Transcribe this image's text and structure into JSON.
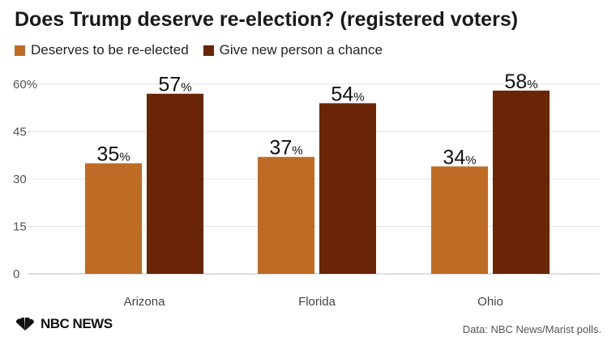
{
  "title": "Does Trump deserve re-election? (registered voters)",
  "legend": [
    {
      "label": "Deserves to be re-elected",
      "color": "#be6b25"
    },
    {
      "label": "Give new person a chance",
      "color": "#6a2507"
    }
  ],
  "footer": {
    "logo_text": "NBC NEWS",
    "source": "Data: NBC News/Marist polls."
  },
  "chart_data": {
    "type": "bar",
    "categories": [
      "Arizona",
      "Florida",
      "Ohio"
    ],
    "series": [
      {
        "name": "Deserves to be re-elected",
        "values": [
          35,
          37,
          34
        ],
        "color": "#be6b25"
      },
      {
        "name": "Give new person a chance",
        "values": [
          57,
          54,
          58
        ],
        "color": "#6a2507"
      }
    ],
    "value_suffix": "%",
    "ylim": [
      0,
      60
    ],
    "yticks": [
      {
        "value": 0,
        "label": "0"
      },
      {
        "value": 15,
        "label": "15"
      },
      {
        "value": 30,
        "label": "30"
      },
      {
        "value": 45,
        "label": "45"
      },
      {
        "value": 60,
        "label": "60%"
      }
    ],
    "grid": true,
    "legend_position": "top-left"
  }
}
